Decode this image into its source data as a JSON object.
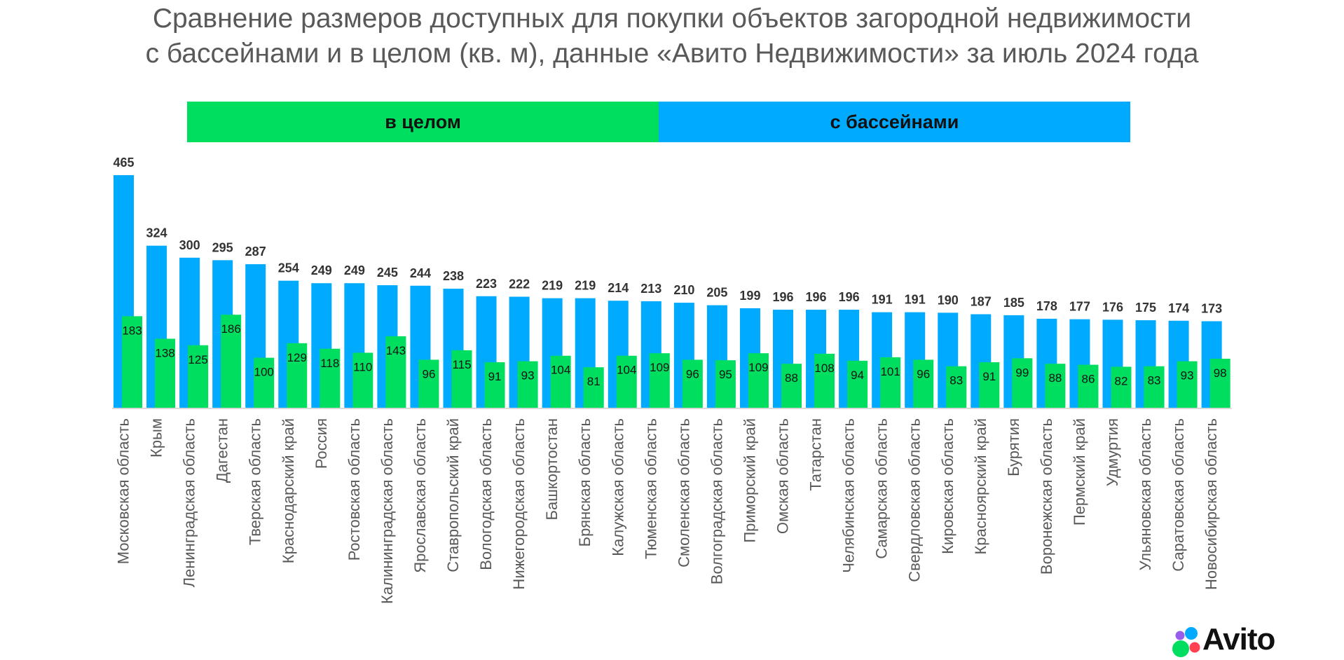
{
  "chart_data": {
    "type": "bar",
    "title": [
      "Сравнение размеров доступных для покупки объектов загородной недвижимости",
      "с бассейнами и в целом (кв. м), данные «Авито Недвижимости» за июль 2024 года"
    ],
    "categories": [
      "Московская область",
      "Крым",
      "Ленинградская область",
      "Дагестан",
      "Тверская область",
      "Краснодарский край",
      "Россия",
      "Ростовская область",
      "Калининградская область",
      "Ярославская область",
      "Ставропольский край",
      "Вологодская область",
      "Нижегородская область",
      "Башкортостан",
      "Брянская область",
      "Калужская область",
      "Тюменская область",
      "Смоленская область",
      "Волгоградская область",
      "Приморский край",
      "Омская область",
      "Татарстан",
      "Челябинская область",
      "Самарская область",
      "Свердловская область",
      "Кировская область",
      "Красноярский край",
      "Бурятия",
      "Воронежская область",
      "Пермский край",
      "Удмуртия",
      "Ульяновская область",
      "Саратовская область",
      "Новосибирская область"
    ],
    "series": [
      {
        "name": "с бассейнами",
        "color": "#00AAFF",
        "values": [
          465,
          324,
          300,
          295,
          287,
          254,
          249,
          249,
          245,
          244,
          238,
          223,
          222,
          219,
          219,
          214,
          213,
          210,
          205,
          199,
          196,
          196,
          196,
          191,
          191,
          190,
          187,
          185,
          178,
          177,
          176,
          175,
          174,
          173
        ]
      },
      {
        "name": "в целом",
        "color": "#00DE5F",
        "values": [
          183,
          138,
          125,
          186,
          100,
          129,
          118,
          110,
          143,
          96,
          115,
          91,
          93,
          104,
          81,
          104,
          109,
          96,
          95,
          109,
          88,
          108,
          94,
          101,
          96,
          83,
          91,
          99,
          88,
          86,
          82,
          83,
          93,
          98
        ]
      }
    ],
    "ylim": [
      0,
      465
    ],
    "legend_position": "top",
    "grid": false
  },
  "legend": {
    "overall": "в целом",
    "pool": "с бассейнами"
  },
  "logo": {
    "text": "Avito"
  }
}
